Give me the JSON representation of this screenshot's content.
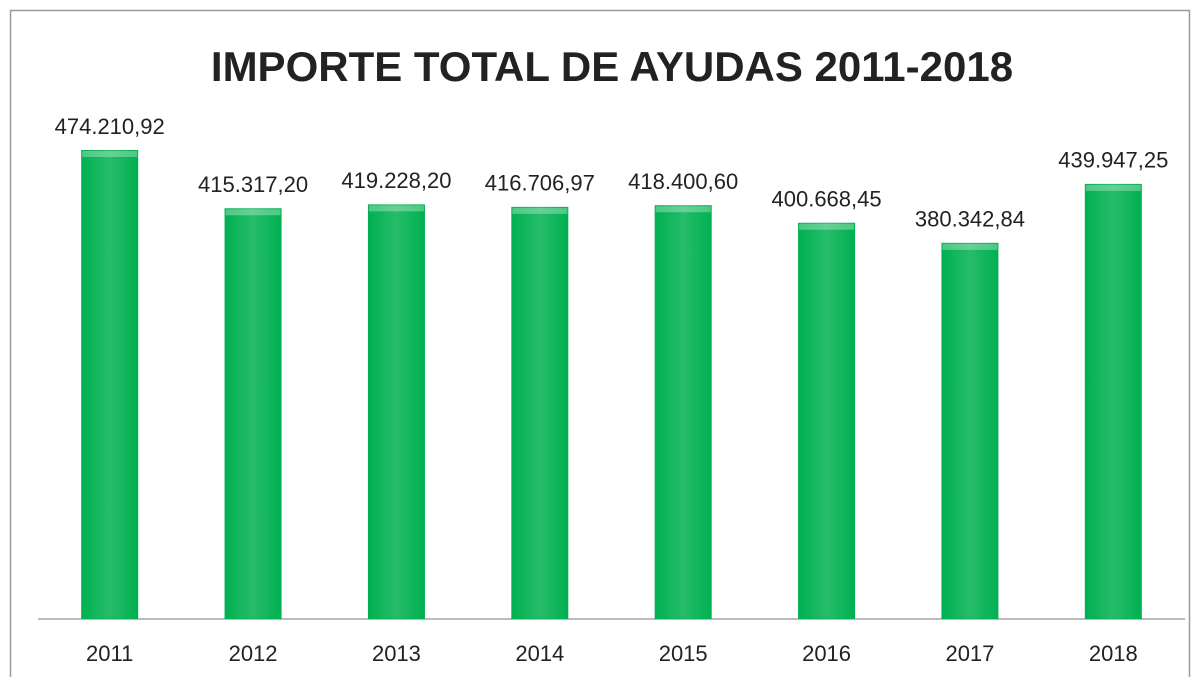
{
  "chart_data": {
    "type": "bar",
    "title": "IMPORTE TOTAL DE AYUDAS 2011-2018",
    "categories": [
      "2011",
      "2012",
      "2013",
      "2014",
      "2015",
      "2016",
      "2017",
      "2018"
    ],
    "values": [
      474210.92,
      415317.2,
      419228.2,
      416706.97,
      418400.6,
      400668.45,
      380342.84,
      439947.25
    ],
    "value_labels": [
      "474.210,92",
      "415.317,20",
      "419.228,20",
      "416.706,97",
      "418.400,60",
      "400.668,45",
      "380.342,84",
      "439.947,25"
    ],
    "color": "#00b050",
    "ylim": [
      0,
      500000
    ]
  }
}
